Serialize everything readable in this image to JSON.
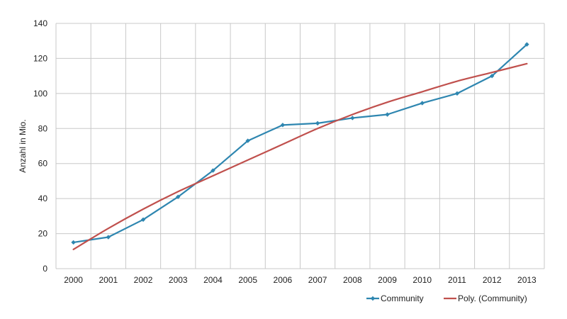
{
  "chart_data": {
    "type": "line",
    "title": "",
    "xlabel": "",
    "ylabel": "Anzahl in Mio.",
    "categories": [
      "2000",
      "2001",
      "2002",
      "2003",
      "2004",
      "2005",
      "2006",
      "2007",
      "2008",
      "2009",
      "2010",
      "2011",
      "2012",
      "2013"
    ],
    "ylim": [
      0,
      140
    ],
    "yticks": [
      0,
      20,
      40,
      60,
      80,
      100,
      120,
      140
    ],
    "grid": true,
    "legend_position": "bottom-right",
    "series": [
      {
        "name": "Community",
        "color": "#2e86b0",
        "marker": "diamond",
        "values": [
          15,
          18,
          28,
          41,
          56,
          73,
          82,
          83,
          86,
          88,
          94.5,
          100,
          110,
          128
        ]
      },
      {
        "name": "Poly. (Community)",
        "color": "#c0504d",
        "marker": "none",
        "values": [
          11,
          23,
          34,
          44,
          53,
          62,
          71,
          80,
          88,
          95,
          101,
          107,
          112,
          117
        ]
      }
    ]
  }
}
